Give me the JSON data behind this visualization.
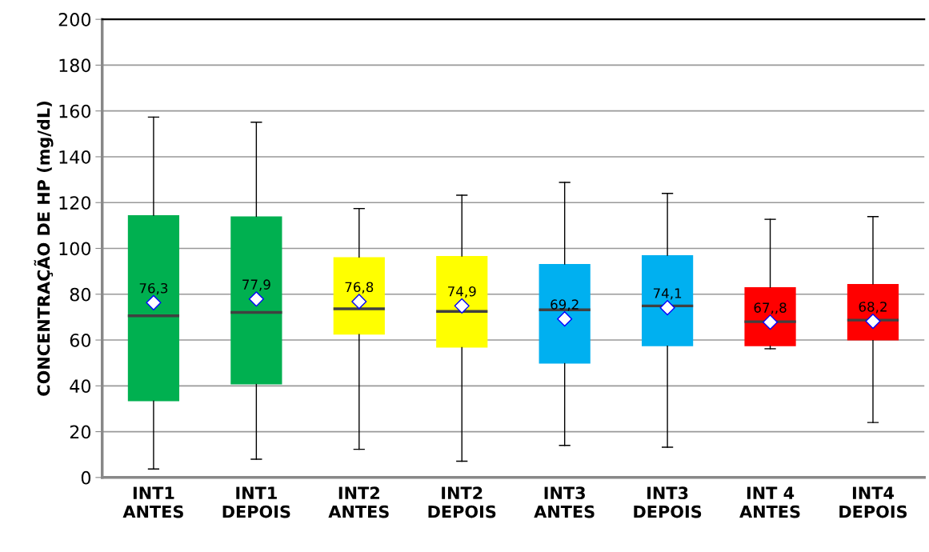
{
  "chart_data": {
    "type": "box",
    "ylabel": "CONCENTRAÇÃO DE HP (mg/dL)",
    "categories": [
      "INT1\nANTES",
      "INT1\nDEPOIS",
      "INT2\nANTES",
      "INT2\nDEPOIS",
      "INT3\nANTES",
      "INT3\nDEPOIS",
      "INT 4\nANTES",
      "INT4\nDEPOIS"
    ],
    "boxes": [
      {
        "low": 3.7,
        "q1": 33.3,
        "median": 70.6,
        "q3": 114.5,
        "high": 157.3,
        "mean": 76.3
      },
      {
        "low": 8.0,
        "q1": 40.6,
        "median": 72.1,
        "q3": 114.0,
        "high": 155.1,
        "mean": 77.9
      },
      {
        "low": 12.3,
        "q1": 62.4,
        "median": 73.6,
        "q3": 96.2,
        "high": 117.4,
        "mean": 76.8
      },
      {
        "low": 7.1,
        "q1": 56.7,
        "median": 72.5,
        "q3": 96.7,
        "high": 123.2,
        "mean": 74.9
      },
      {
        "low": 14.0,
        "q1": 49.7,
        "median": 73.2,
        "q3": 93.2,
        "high": 128.8,
        "mean": 69.2
      },
      {
        "low": 13.2,
        "q1": 57.3,
        "median": 74.9,
        "q3": 97.0,
        "high": 124.0,
        "mean": 74.1
      },
      {
        "low": 56.2,
        "q1": 57.3,
        "median": 68.0,
        "q3": 83.1,
        "high": 112.7,
        "mean": 67.8
      },
      {
        "low": 24.0,
        "q1": 59.8,
        "median": 68.7,
        "q3": 84.5,
        "high": 113.9,
        "mean": 68.2
      }
    ],
    "value_labels": [
      "76,3",
      "77,9",
      "76,8",
      "74,9",
      "69,2",
      "74,1",
      "67,,8",
      "68,2"
    ],
    "colors": [
      "#00b050",
      "#00b050",
      "#ffff00",
      "#ffff00",
      "#00b0f0",
      "#00b0f0",
      "#ff0000",
      "#ff0000"
    ],
    "marker": "diamond",
    "ylim": [
      0,
      200
    ],
    "yticks": [
      0,
      20,
      40,
      60,
      80,
      100,
      120,
      140,
      160,
      180,
      200
    ],
    "grid": "y"
  }
}
